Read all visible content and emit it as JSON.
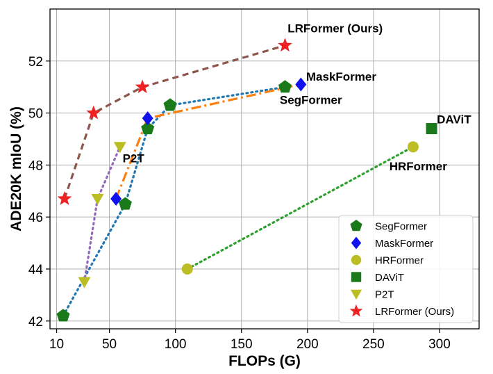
{
  "chart_data": {
    "type": "scatter",
    "xlabel": "FLOPs (G)",
    "ylabel": "ADE20K mIoU (%)",
    "xlim": [
      5,
      330
    ],
    "ylim": [
      41.7,
      54.0
    ],
    "x_ticks": [
      10,
      50,
      100,
      150,
      200,
      250,
      300
    ],
    "y_ticks": [
      42,
      44,
      46,
      48,
      50,
      52
    ],
    "grid": true,
    "legend_position": "bottom-right",
    "series": [
      {
        "name": "SegFormer",
        "marker": "pentagon",
        "color": "#1a7a1a",
        "line_color": "#1f77b4",
        "line_style": "dotted",
        "points": [
          [
            15,
            42.2
          ],
          [
            62,
            46.5
          ],
          [
            79,
            49.4
          ],
          [
            96,
            50.3
          ],
          [
            183,
            51.0
          ]
        ]
      },
      {
        "name": "MaskFormer",
        "marker": "diamond",
        "color": "#1111ee",
        "line_color": "#ff7f0e",
        "line_style": "dashdot",
        "points": [
          [
            55,
            46.7
          ],
          [
            79,
            49.8
          ],
          [
            195,
            51.1
          ]
        ]
      },
      {
        "name": "HRFormer",
        "marker": "circle",
        "color": "#bcbd22",
        "line_color": "#2ca02c",
        "line_style": "dotted",
        "points": [
          [
            109,
            44.0
          ],
          [
            280,
            48.7
          ]
        ]
      },
      {
        "name": "DAViT",
        "marker": "square",
        "color": "#1a7a1a",
        "line_color": null,
        "line_style": "none",
        "points": [
          [
            294,
            49.4
          ]
        ]
      },
      {
        "name": "P2T",
        "marker": "triangle-down",
        "color": "#bcbd22",
        "line_color": "#9467bd",
        "line_style": "dotted",
        "points": [
          [
            31,
            43.5
          ],
          [
            41,
            46.7
          ],
          [
            58,
            48.7
          ]
        ]
      },
      {
        "name": "LRFormer (Ours)",
        "marker": "star",
        "color": "#ee2222",
        "line_color": "#8c564b",
        "line_style": "dashed",
        "points": [
          [
            16,
            46.7
          ],
          [
            38,
            50.0
          ],
          [
            75,
            51.0
          ],
          [
            183,
            52.6
          ]
        ]
      }
    ],
    "annotations": [
      {
        "text": "LRFormer (Ours)",
        "x": 185,
        "y": 53.1
      },
      {
        "text": "MaskFormer",
        "x": 199,
        "y": 51.25
      },
      {
        "text": "SegFormer",
        "x": 179,
        "y": 50.35
      },
      {
        "text": "DAViT",
        "x": 298,
        "y": 49.6
      },
      {
        "text": "HRFormer",
        "x": 262,
        "y": 47.8
      },
      {
        "text": "P2T",
        "x": 60,
        "y": 48.1
      }
    ]
  }
}
